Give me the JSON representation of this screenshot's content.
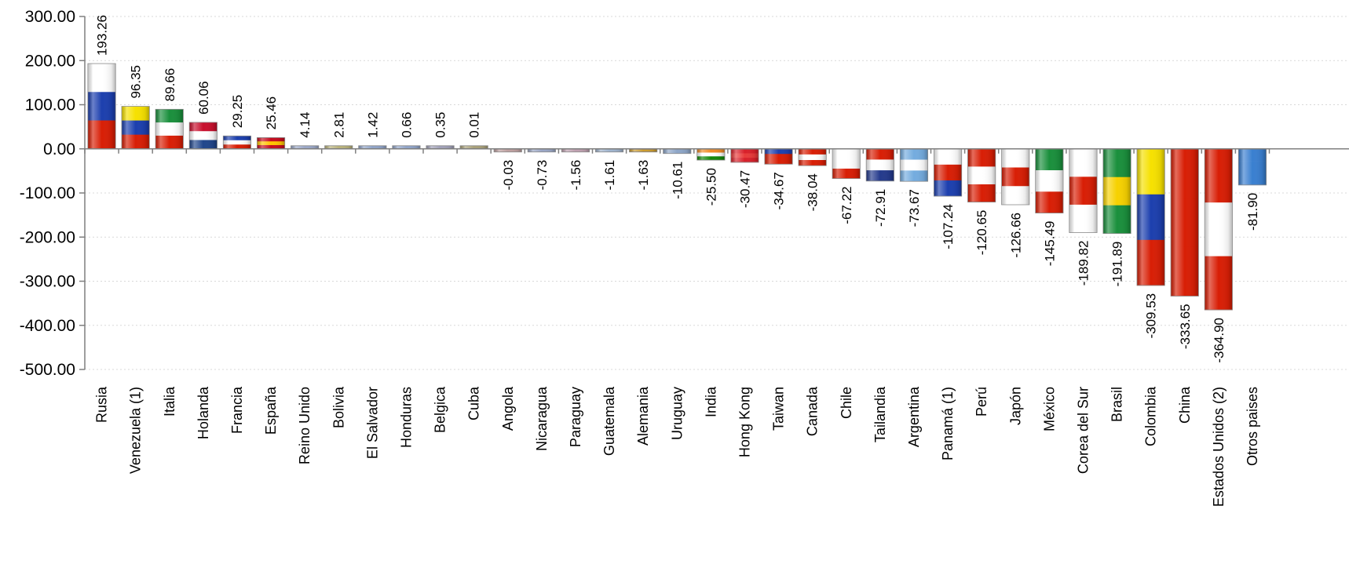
{
  "chart_data": {
    "type": "bar",
    "title": "",
    "xlabel": "",
    "ylabel": "",
    "ylim": [
      -500,
      300
    ],
    "yticks": [
      300,
      200,
      100,
      0,
      -100,
      -200,
      -300,
      -400,
      -500
    ],
    "ytick_labels": [
      "300.00",
      "200.00",
      "100.00",
      "0.00",
      "-100.00",
      "-200.00",
      "-300.00",
      "-400.00",
      "-500.00"
    ],
    "grid": true,
    "legend": "none",
    "categories": [
      "Rusia",
      "Venezuela (1)",
      "Italia",
      "Holanda",
      "Francia",
      "España",
      "Reino Unido",
      "Bolivia",
      "El Salvador",
      "Honduras",
      "Belgica",
      "Cuba",
      "Angola",
      "Nicaragua",
      "Paraguay",
      "Guatemala",
      "Alemania",
      "Uruguay",
      "India",
      "Hong Kong",
      "Taiwan",
      "Canada",
      "Chile",
      "Tailandia",
      "Argentina",
      "Panamá (1)",
      "Perú",
      "Japón",
      "México",
      "Corea del Sur",
      "Brasil",
      "Colombia",
      "China",
      "Estados Unidos (2)",
      "Otros paises"
    ],
    "values": [
      193.26,
      96.35,
      89.66,
      60.06,
      29.25,
      25.46,
      4.14,
      2.81,
      1.42,
      0.66,
      0.35,
      0.01,
      -0.03,
      -0.73,
      -1.56,
      -1.61,
      -1.63,
      -10.61,
      -25.5,
      -30.47,
      -34.67,
      -38.04,
      -67.22,
      -72.91,
      -73.67,
      -107.24,
      -120.65,
      -126.66,
      -145.49,
      -189.82,
      -191.89,
      -309.53,
      -333.65,
      -364.9,
      -81.9
    ],
    "value_labels": [
      "193.26",
      "96.35",
      "89.66",
      "60.06",
      "29.25",
      "25.46",
      "4.14",
      "2.81",
      "1.42",
      "0.66",
      "0.35",
      "0.01",
      "-0.03",
      "-0.73",
      "-1.56",
      "-1.61",
      "-1.63",
      "-10.61",
      "-25.50",
      "-30.47",
      "-34.67",
      "-38.04",
      "-67.22",
      "-72.91",
      "-73.67",
      "-107.24",
      "-120.65",
      "-126.66",
      "-145.49",
      "-189.82",
      "-191.89",
      "-309.53",
      "-333.65",
      "-364.90",
      "-81.90"
    ],
    "bar_colors": [
      [
        "#ffffff",
        "#1c3fae",
        "#d81e05"
      ],
      [
        "#f6e100",
        "#1c3fae",
        "#d81e05"
      ],
      [
        "#1a8f3c",
        "#ffffff",
        "#d81e05"
      ],
      [
        "#c8102e",
        "#ffffff",
        "#21468b"
      ],
      [
        "#1c3fae",
        "#ffffff",
        "#d81e05"
      ],
      [
        "#c60b1e",
        "#ffc400",
        "#c60b1e"
      ],
      [
        "#9aa7c7",
        "#9aa7c7",
        "#9aa7c7"
      ],
      [
        "#b9b27a",
        "#b9b27a",
        "#b9b27a"
      ],
      [
        "#8fa3c8",
        "#8fa3c8",
        "#8fa3c8"
      ],
      [
        "#8fa3c8",
        "#8fa3c8",
        "#8fa3c8"
      ],
      [
        "#a0a0b8",
        "#a0a0b8",
        "#a0a0b8"
      ],
      [
        "#a8a078",
        "#a8a078",
        "#a8a078"
      ],
      [
        "#c0a0a0",
        "#c0a0a0",
        "#c0a0a0"
      ],
      [
        "#9aa7c7",
        "#9aa7c7",
        "#9aa7c7"
      ],
      [
        "#c0a0b0",
        "#c0a0b0",
        "#c0a0b0"
      ],
      [
        "#9fb4cf",
        "#9fb4cf",
        "#9fb4cf"
      ],
      [
        "#b89048",
        "#d4a020",
        "#b89048"
      ],
      [
        "#8ea6c8",
        "#8ea6c8",
        "#8ea6c8"
      ],
      [
        "#f08a24",
        "#ffffff",
        "#138808"
      ],
      [
        "#d8202a",
        "#e83a3a",
        "#d8202a"
      ],
      [
        "#1c3fae",
        "#d81e05",
        "#d81e05"
      ],
      [
        "#d81e05",
        "#ffffff",
        "#d81e05"
      ],
      [
        "#ffffff",
        "#ffffff",
        "#d81e05"
      ],
      [
        "#d81e05",
        "#ffffff",
        "#243a8c"
      ],
      [
        "#74acdf",
        "#ffffff",
        "#74acdf"
      ],
      [
        "#ffffff",
        "#d81e05",
        "#1c3fae"
      ],
      [
        "#d81e05",
        "#ffffff",
        "#d81e05"
      ],
      [
        "#ffffff",
        "#d81e05",
        "#ffffff"
      ],
      [
        "#1a8f3c",
        "#ffffff",
        "#d81e05"
      ],
      [
        "#ffffff",
        "#d81e05",
        "#ffffff"
      ],
      [
        "#1a8f3c",
        "#f6d100",
        "#1a8f3c"
      ],
      [
        "#f6e100",
        "#1c3fae",
        "#d81e05"
      ],
      [
        "#d81e05",
        "#d81e05",
        "#d81e05"
      ],
      [
        "#d81e05",
        "#ffffff",
        "#d81e05"
      ],
      [
        "#3a7fd0",
        "#3a7fd0",
        "#3a7fd0"
      ]
    ]
  }
}
